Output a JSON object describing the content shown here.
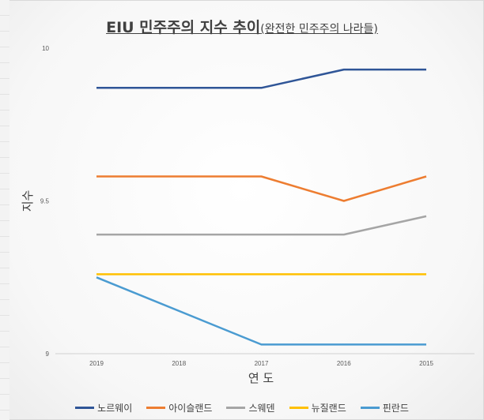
{
  "chart_data": {
    "type": "line",
    "title": "EIU 민주주의  지수 추이",
    "subtitle": "(완전한 민주주의 나라들)",
    "xlabel": "연 도",
    "ylabel": "지수",
    "categories": [
      "2019",
      "2018",
      "2017",
      "2016",
      "2015"
    ],
    "ylim": [
      9,
      10
    ],
    "yticks": [
      "9",
      "9.5",
      "10"
    ],
    "grid": false,
    "legend_position": "bottom",
    "series": [
      {
        "name": "노르웨이",
        "color": "#2f5597",
        "values": [
          9.87,
          9.87,
          9.87,
          9.93,
          9.93
        ]
      },
      {
        "name": "아이슬랜드",
        "color": "#ed7d31",
        "values": [
          9.58,
          9.58,
          9.58,
          9.5,
          9.58
        ]
      },
      {
        "name": "스웨덴",
        "color": "#a5a5a5",
        "values": [
          9.39,
          9.39,
          9.39,
          9.39,
          9.45
        ]
      },
      {
        "name": "뉴질랜드",
        "color": "#ffc000",
        "values": [
          9.26,
          9.26,
          9.26,
          9.26,
          9.26
        ]
      },
      {
        "name": "핀란드",
        "color": "#4a9bd1",
        "values": [
          9.25,
          null,
          9.03,
          9.03,
          9.03
        ]
      }
    ]
  }
}
